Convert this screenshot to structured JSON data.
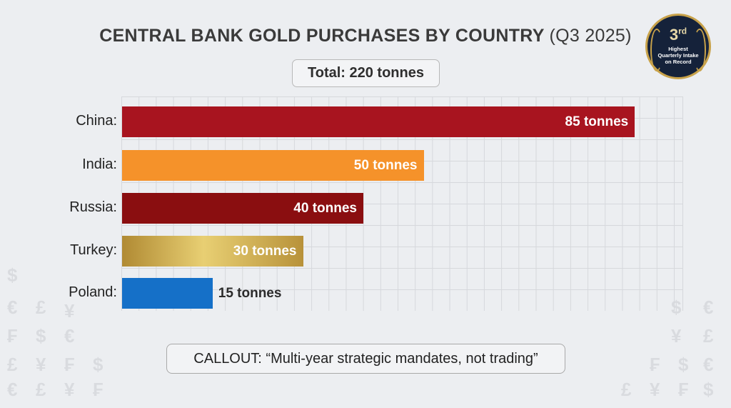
{
  "chart_data": {
    "type": "bar",
    "orientation": "horizontal",
    "title": "CENTRAL BANK GOLD PURCHASES BY COUNTRY",
    "subtitle": "(Q3 2025)",
    "categories": [
      "China:",
      "India:",
      "Russia:",
      "Turkey:",
      "Poland:"
    ],
    "values": [
      85,
      50,
      40,
      30,
      15
    ],
    "data_labels": [
      "85 tonnes",
      "50 tonnes",
      "40 tonnes",
      "30 tonnes",
      "15 tonnes"
    ],
    "colors": [
      "#a8141f",
      "#f5922a",
      "#8a0e10",
      "#c9a441",
      "#1570c8"
    ],
    "unit": "tonnes",
    "grid": true
  },
  "total_label": "Total: 220 tonnes",
  "callout": "CALLOUT: “Multi-year strategic mandates, not trading”",
  "badge": {
    "rank": "3",
    "suffix": "rd",
    "text": [
      "Highest",
      "Quarterly Intake",
      "on Record"
    ]
  },
  "decor_symbols": [
    "$",
    "€",
    "£",
    "¥",
    "₣"
  ]
}
